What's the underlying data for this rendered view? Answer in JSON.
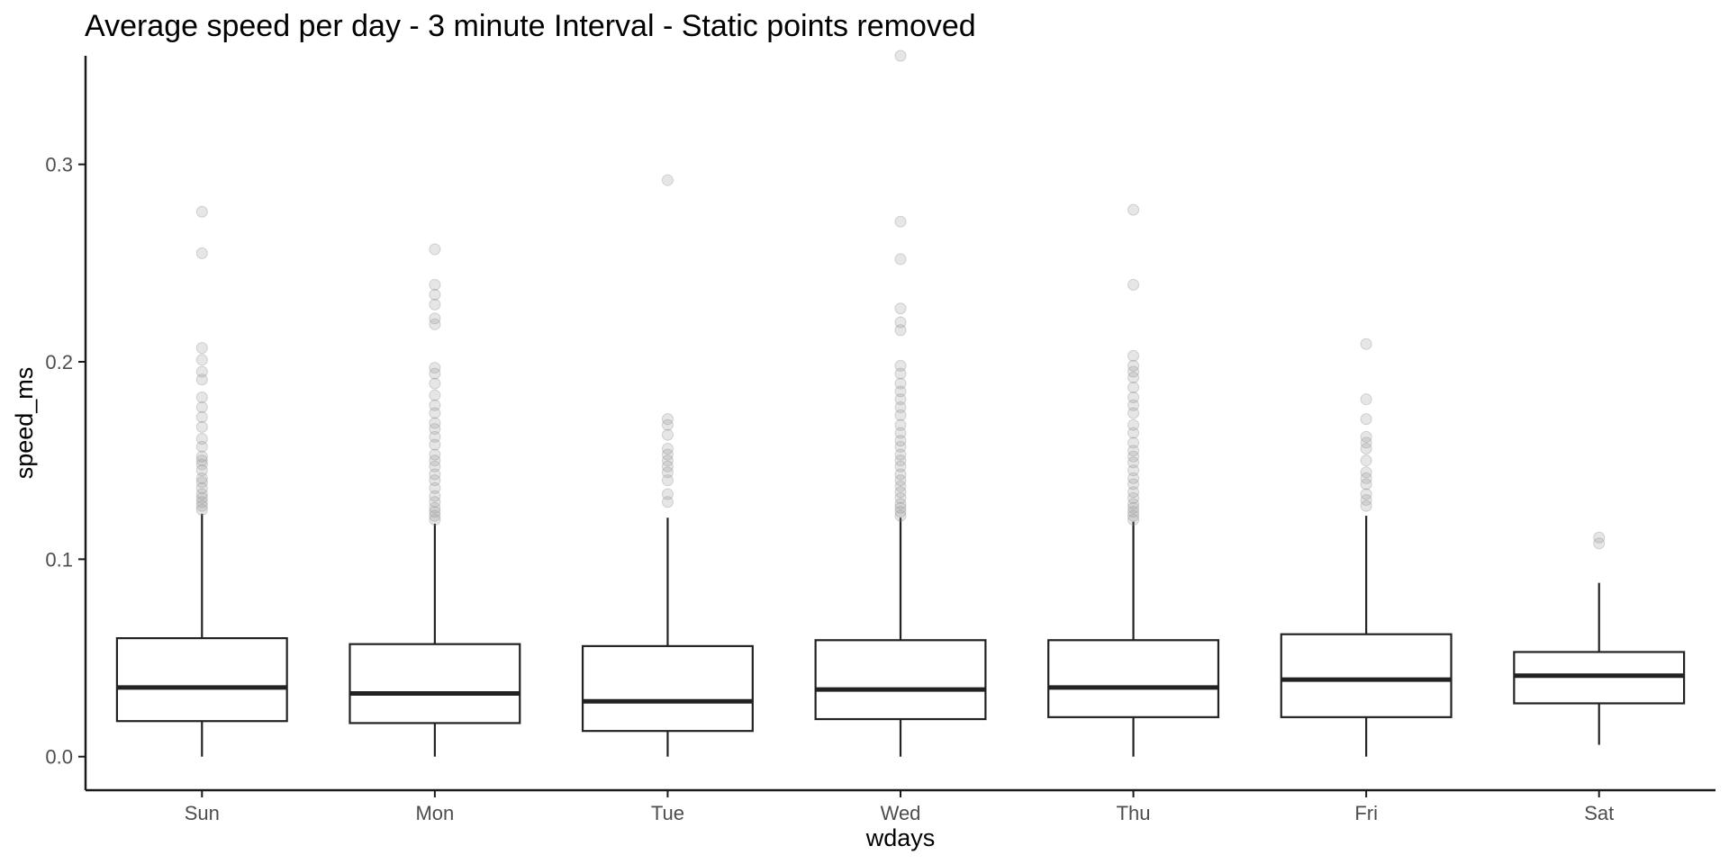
{
  "chart_data": {
    "type": "boxplot",
    "title": "Average speed per day - 3 minute Interval - Static points removed",
    "xlabel": "wdays",
    "ylabel": "speed_ms",
    "ylim": [
      -0.017,
      0.355
    ],
    "yticks": [
      0.0,
      0.1,
      0.2,
      0.3
    ],
    "ytick_labels": [
      "0.0",
      "0.1",
      "0.2",
      "0.3"
    ],
    "grid": false,
    "categories": [
      "Sun",
      "Mon",
      "Tue",
      "Wed",
      "Thu",
      "Fri",
      "Sat"
    ],
    "boxes": [
      {
        "category": "Sun",
        "min": 0.0,
        "q1": 0.018,
        "median": 0.035,
        "q3": 0.06,
        "max": 0.123,
        "outliers": [
          0.276,
          0.255,
          0.207,
          0.201,
          0.195,
          0.191,
          0.182,
          0.177,
          0.172,
          0.167,
          0.161,
          0.157,
          0.152,
          0.15,
          0.148,
          0.145,
          0.141,
          0.139,
          0.136,
          0.133,
          0.131,
          0.129,
          0.127,
          0.125
        ]
      },
      {
        "category": "Mon",
        "min": 0.0,
        "q1": 0.017,
        "median": 0.032,
        "q3": 0.057,
        "max": 0.118,
        "outliers": [
          0.257,
          0.239,
          0.234,
          0.229,
          0.222,
          0.219,
          0.197,
          0.194,
          0.189,
          0.183,
          0.178,
          0.174,
          0.169,
          0.166,
          0.162,
          0.158,
          0.153,
          0.15,
          0.147,
          0.143,
          0.14,
          0.136,
          0.132,
          0.129,
          0.126,
          0.124,
          0.122,
          0.12
        ]
      },
      {
        "category": "Tue",
        "min": 0.0,
        "q1": 0.013,
        "median": 0.028,
        "q3": 0.056,
        "max": 0.121,
        "outliers": [
          0.292,
          0.171,
          0.168,
          0.163,
          0.156,
          0.153,
          0.15,
          0.147,
          0.144,
          0.14,
          0.133,
          0.129
        ]
      },
      {
        "category": "Wed",
        "min": 0.0,
        "q1": 0.019,
        "median": 0.034,
        "q3": 0.059,
        "max": 0.121,
        "outliers": [
          0.355,
          0.271,
          0.252,
          0.227,
          0.22,
          0.216,
          0.198,
          0.194,
          0.189,
          0.185,
          0.181,
          0.177,
          0.173,
          0.168,
          0.164,
          0.16,
          0.157,
          0.153,
          0.15,
          0.147,
          0.143,
          0.14,
          0.137,
          0.134,
          0.131,
          0.128,
          0.126,
          0.124,
          0.122
        ]
      },
      {
        "category": "Thu",
        "min": 0.0,
        "q1": 0.02,
        "median": 0.035,
        "q3": 0.059,
        "max": 0.119,
        "outliers": [
          0.277,
          0.239,
          0.203,
          0.198,
          0.195,
          0.192,
          0.187,
          0.182,
          0.178,
          0.174,
          0.168,
          0.164,
          0.159,
          0.155,
          0.152,
          0.149,
          0.145,
          0.141,
          0.138,
          0.134,
          0.131,
          0.128,
          0.126,
          0.124,
          0.122,
          0.12
        ]
      },
      {
        "category": "Fri",
        "min": 0.0,
        "q1": 0.02,
        "median": 0.039,
        "q3": 0.062,
        "max": 0.122,
        "outliers": [
          0.209,
          0.181,
          0.171,
          0.162,
          0.159,
          0.156,
          0.15,
          0.144,
          0.141,
          0.138,
          0.133,
          0.13,
          0.127
        ]
      },
      {
        "category": "Sat",
        "min": 0.006,
        "q1": 0.027,
        "median": 0.041,
        "q3": 0.053,
        "max": 0.088,
        "outliers": [
          0.111,
          0.108
        ]
      }
    ],
    "colors": {
      "box_stroke": "#222222",
      "outlier": "#8c8c8c",
      "axis": "#1a1a1a",
      "tick_text": "#4d4d4d"
    }
  }
}
